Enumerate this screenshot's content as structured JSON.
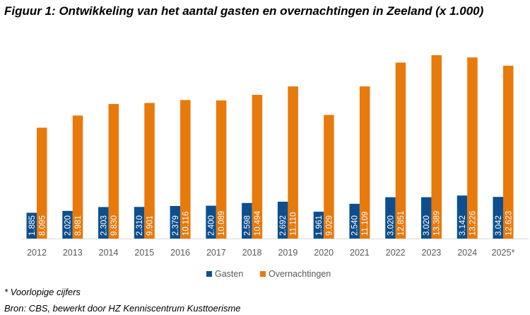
{
  "chart_data": {
    "type": "bar",
    "title": "Figuur 1: Ontwikkeling van het aantal gasten en overnachtingen in Zeeland (x 1.000)",
    "categories": [
      "2012",
      "2013",
      "2014",
      "2015",
      "2016",
      "2017",
      "2018",
      "2019",
      "2020",
      "2021",
      "2022",
      "2023",
      "2024",
      "2025*"
    ],
    "series": [
      {
        "name": "Gasten",
        "color": "#0d4f8e",
        "values": [
          1885,
          2020,
          2303,
          2310,
          2379,
          2400,
          2598,
          2692,
          1961,
          2540,
          3020,
          3020,
          3142,
          3042
        ],
        "labels": [
          "1.885",
          "2.020",
          "2.303",
          "2.310",
          "2.379",
          "2.400",
          "2.598",
          "2.692",
          "1.961",
          "2.540",
          "3.020",
          "3.020",
          "3.142",
          "3.042"
        ]
      },
      {
        "name": "Overnachtingen",
        "color": "#e8790b",
        "values": [
          8095,
          8981,
          9830,
          9901,
          10116,
          10089,
          10494,
          11110,
          9029,
          11109,
          12851,
          13389,
          13226,
          12623
        ],
        "labels": [
          "8.095",
          "8.981",
          "9.830",
          "9.901",
          "10.116",
          "10.089",
          "10.494",
          "11.110",
          "9.029",
          "11.109",
          "12.851",
          "13.389",
          "13.226",
          "12.623"
        ]
      }
    ],
    "xlabel": "",
    "ylabel": "",
    "ylim": [
      0,
      13389
    ],
    "grid": false,
    "legend": "bottom"
  },
  "notes": {
    "footnote": "* Voorlopige cijfers",
    "source": "Bron: CBS, bewerkt door HZ Kenniscentrum Kusttoerisme"
  }
}
